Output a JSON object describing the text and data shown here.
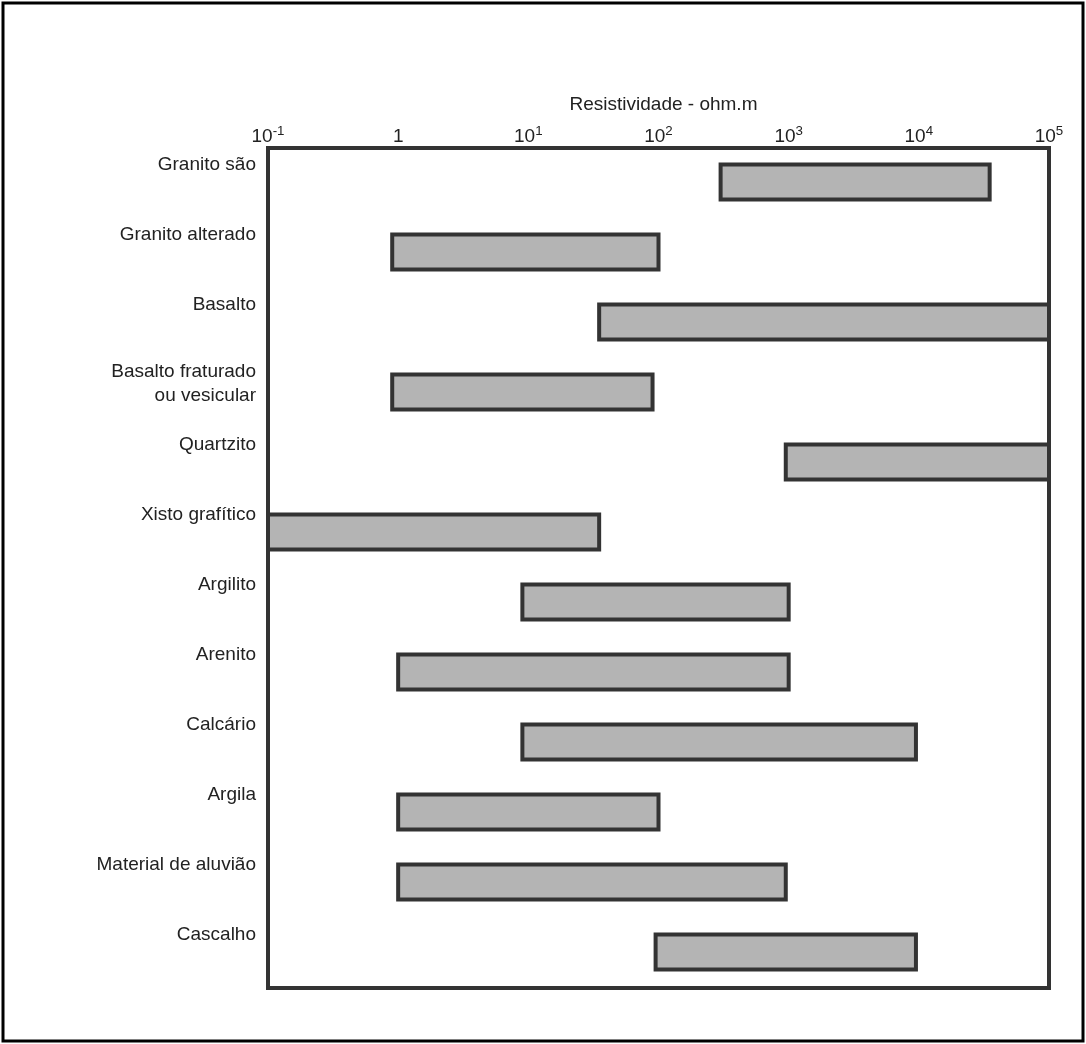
{
  "chart_data": {
    "type": "bar",
    "orientation": "horizontal",
    "log": "x",
    "xlabel": "Resistividade - ohm.m",
    "categories": [
      "Granito são",
      "Granito alterado",
      "Basalto",
      "Basalto fraturado ou vesicular",
      "Quartzito",
      "Xisto grafítico",
      "Argilito",
      "Arenito",
      "Calcário",
      "Argila",
      "Material de aluvião",
      "Cascalho"
    ],
    "base": [
      300,
      0.9,
      35,
      0.9,
      950,
      0.1,
      9,
      1,
      9,
      1,
      1,
      95
    ],
    "values": [
      34700,
      99.1,
      99965,
      89.1,
      99050,
      34.9,
      991,
      999,
      9491,
      99,
      949,
      9405
    ],
    "color": "#b4b4b4",
    "xlim": [
      0.1,
      100000
    ],
    "xticks": [
      {
        "value": 0.1,
        "label": "10$^{-1}$"
      },
      1,
      {
        "value": 10,
        "label": "10$^{1}$"
      },
      {
        "value": 100,
        "label": "10$^{2}$"
      },
      {
        "value": 1000,
        "label": "10$^{3}$"
      },
      {
        "value": 10000,
        "label": "10$^{4}$"
      },
      {
        "value": 100000,
        "label": "10$^{5}$"
      }
    ],
    "grid": false
  }
}
